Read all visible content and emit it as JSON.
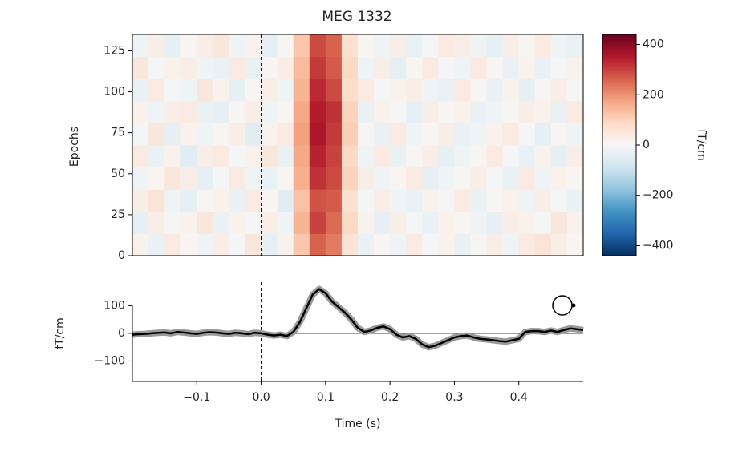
{
  "chart_data": [
    {
      "type": "heatmap",
      "title": "MEG 1332",
      "ylabel": "Epochs",
      "xlim": [
        -0.2,
        0.5
      ],
      "ylim": [
        0,
        135
      ],
      "yticks": [
        0,
        25,
        50,
        75,
        100,
        125
      ],
      "colormap": "RdBu_r",
      "clim": [
        -440,
        440
      ],
      "colorbar_label": "fT/cm",
      "colorbar_ticks": [
        {
          "value": -400,
          "label": "−400"
        },
        {
          "value": -200,
          "label": "−200"
        },
        0,
        200,
        400
      ],
      "vline": 0,
      "z": [
        [
          20,
          -30,
          40,
          10,
          -20,
          30,
          -10,
          50,
          -40,
          20,
          120,
          260,
          230,
          60,
          -30,
          10,
          -20,
          40,
          -10,
          20,
          -30,
          10,
          30,
          -20,
          40,
          60,
          30,
          10
        ],
        [
          -40,
          30,
          -10,
          20,
          50,
          -30,
          20,
          -10,
          30,
          -20,
          150,
          300,
          250,
          90,
          20,
          -40,
          30,
          -10,
          -30,
          20,
          10,
          -20,
          -40,
          30,
          20,
          -10,
          50,
          20
        ],
        [
          30,
          60,
          -20,
          -40,
          10,
          20,
          -30,
          40,
          10,
          -50,
          130,
          280,
          270,
          70,
          -10,
          30,
          -20,
          -30,
          20,
          -10,
          40,
          -30,
          10,
          20,
          -20,
          30,
          -10,
          -30
        ],
        [
          -20,
          10,
          50,
          30,
          -40,
          -10,
          40,
          -20,
          -30,
          10,
          160,
          320,
          290,
          100,
          30,
          -20,
          10,
          40,
          -40,
          -20,
          10,
          30,
          -10,
          -30,
          40,
          -20,
          20,
          10
        ],
        [
          40,
          -30,
          20,
          -50,
          30,
          40,
          -10,
          20,
          50,
          -30,
          170,
          340,
          300,
          90,
          -20,
          40,
          -30,
          10,
          30,
          -40,
          -20,
          10,
          40,
          -10,
          -30,
          20,
          -40,
          30
        ],
        [
          -10,
          50,
          -40,
          20,
          -20,
          10,
          30,
          -50,
          20,
          40,
          180,
          360,
          310,
          110,
          10,
          -30,
          40,
          -20,
          10,
          30,
          -30,
          -20,
          20,
          40,
          -10,
          -40,
          10,
          -20
        ],
        [
          20,
          -20,
          30,
          40,
          -30,
          -40,
          10,
          30,
          -20,
          10,
          170,
          350,
          320,
          100,
          -30,
          20,
          -10,
          -40,
          30,
          10,
          20,
          -30,
          -20,
          10,
          30,
          20,
          -30,
          40
        ],
        [
          -30,
          40,
          -10,
          -20,
          50,
          20,
          -40,
          10,
          30,
          -20,
          150,
          330,
          290,
          80,
          40,
          -10,
          20,
          30,
          -20,
          -30,
          40,
          10,
          -30,
          20,
          -40,
          10,
          30,
          -10
        ],
        [
          50,
          -10,
          20,
          30,
          -20,
          -30,
          40,
          -30,
          10,
          30,
          140,
          310,
          270,
          90,
          -20,
          30,
          -40,
          10,
          40,
          -10,
          -20,
          40,
          10,
          -30,
          20,
          -30,
          -10,
          20
        ],
        [
          -20,
          30,
          -40,
          10,
          30,
          50,
          -20,
          20,
          -40,
          10,
          120,
          290,
          260,
          70,
          10,
          -20,
          30,
          -30,
          -10,
          40,
          30,
          -20,
          -40,
          30,
          10,
          40,
          -20,
          -30
        ]
      ]
    },
    {
      "type": "line",
      "xlabel": "Time (s)",
      "ylabel": "fT/cm",
      "color": "#000000",
      "xlim": [
        -0.2,
        0.5
      ],
      "ylim": [
        -174,
        185
      ],
      "xticks": [
        {
          "value": -0.1,
          "label": "−0.1"
        },
        {
          "value": 0,
          "label": "0.0"
        },
        0.1,
        0.2,
        0.3,
        0.4
      ],
      "yticks": [
        {
          "value": -100,
          "label": "−100"
        },
        0,
        100
      ],
      "hline": 0,
      "vline": 0,
      "x": [
        -0.2,
        -0.19,
        -0.18,
        -0.17,
        -0.16,
        -0.15,
        -0.14,
        -0.13,
        -0.12,
        -0.11,
        -0.1,
        -0.09,
        -0.08,
        -0.07,
        -0.06,
        -0.05,
        -0.04,
        -0.03,
        -0.02,
        -0.01,
        0,
        0.01,
        0.02,
        0.03,
        0.04,
        0.05,
        0.06,
        0.07,
        0.08,
        0.09,
        0.1,
        0.11,
        0.12,
        0.13,
        0.14,
        0.15,
        0.16,
        0.17,
        0.18,
        0.19,
        0.2,
        0.21,
        0.22,
        0.23,
        0.24,
        0.25,
        0.26,
        0.27,
        0.28,
        0.29,
        0.3,
        0.31,
        0.32,
        0.33,
        0.34,
        0.35,
        0.36,
        0.37,
        0.38,
        0.39,
        0.4,
        0.41,
        0.42,
        0.43,
        0.44,
        0.45,
        0.46,
        0.47,
        0.48,
        0.49,
        0.5
      ],
      "values": [
        -5,
        -3,
        -2,
        0,
        2,
        3,
        0,
        5,
        3,
        0,
        -2,
        2,
        4,
        3,
        0,
        -2,
        2,
        0,
        -3,
        2,
        0,
        -5,
        -8,
        -5,
        -10,
        5,
        40,
        90,
        140,
        160,
        145,
        115,
        95,
        75,
        50,
        20,
        5,
        10,
        20,
        25,
        15,
        -5,
        -15,
        -10,
        -20,
        -40,
        -50,
        -45,
        -35,
        -25,
        -15,
        -10,
        -8,
        -15,
        -20,
        -22,
        -25,
        -28,
        -30,
        -25,
        -20,
        5,
        8,
        8,
        5,
        10,
        5,
        12,
        18,
        15,
        12
      ]
    }
  ]
}
